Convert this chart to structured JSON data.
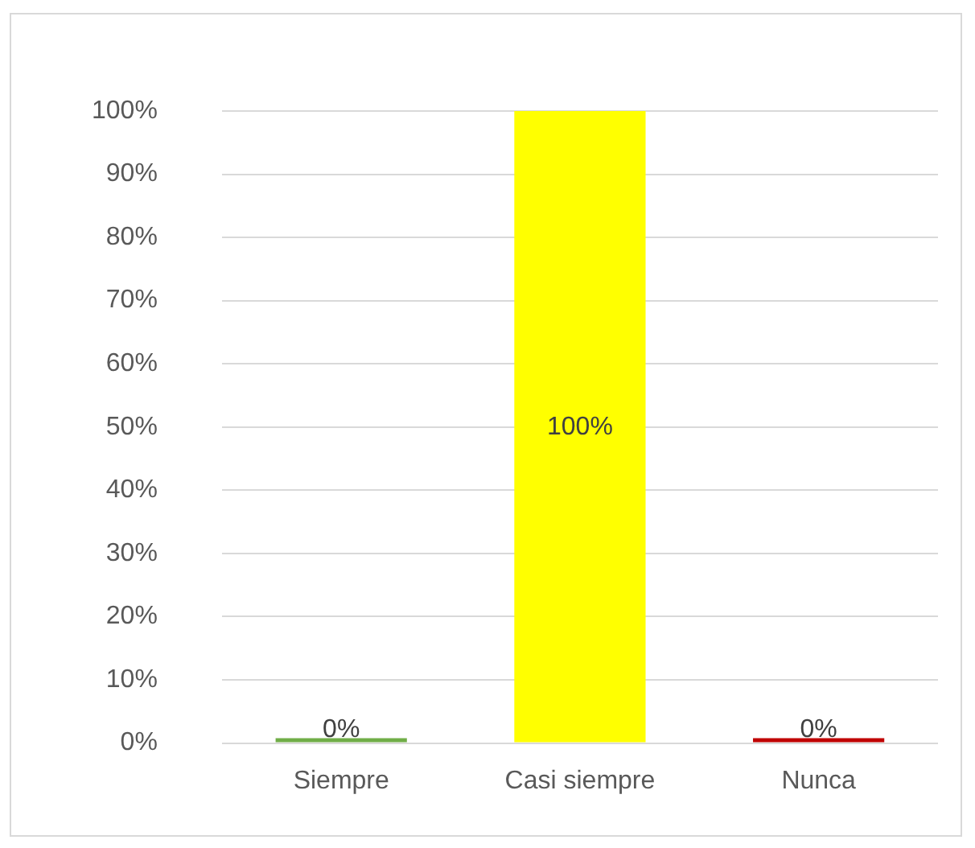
{
  "chart_data": {
    "type": "bar",
    "categories": [
      "Siempre",
      "Casi siempre",
      "Nunca"
    ],
    "values": [
      0,
      100,
      0
    ],
    "colors": [
      "#70ad47",
      "#ffff00",
      "#c00000"
    ],
    "value_labels": [
      "0%",
      "100%",
      "0%"
    ],
    "ylim": [
      0,
      100
    ],
    "yticks": [
      {
        "value": 0,
        "label": "0%"
      },
      {
        "value": 10,
        "label": "10%"
      },
      {
        "value": 20,
        "label": "20%"
      },
      {
        "value": 30,
        "label": "30%"
      },
      {
        "value": 40,
        "label": "40%"
      },
      {
        "value": 50,
        "label": "50%"
      },
      {
        "value": 60,
        "label": "60%"
      },
      {
        "value": 70,
        "label": "70%"
      },
      {
        "value": 80,
        "label": "80%"
      },
      {
        "value": 90,
        "label": "90%"
      },
      {
        "value": 100,
        "label": "100%"
      }
    ],
    "grid": "y",
    "legend": false
  }
}
